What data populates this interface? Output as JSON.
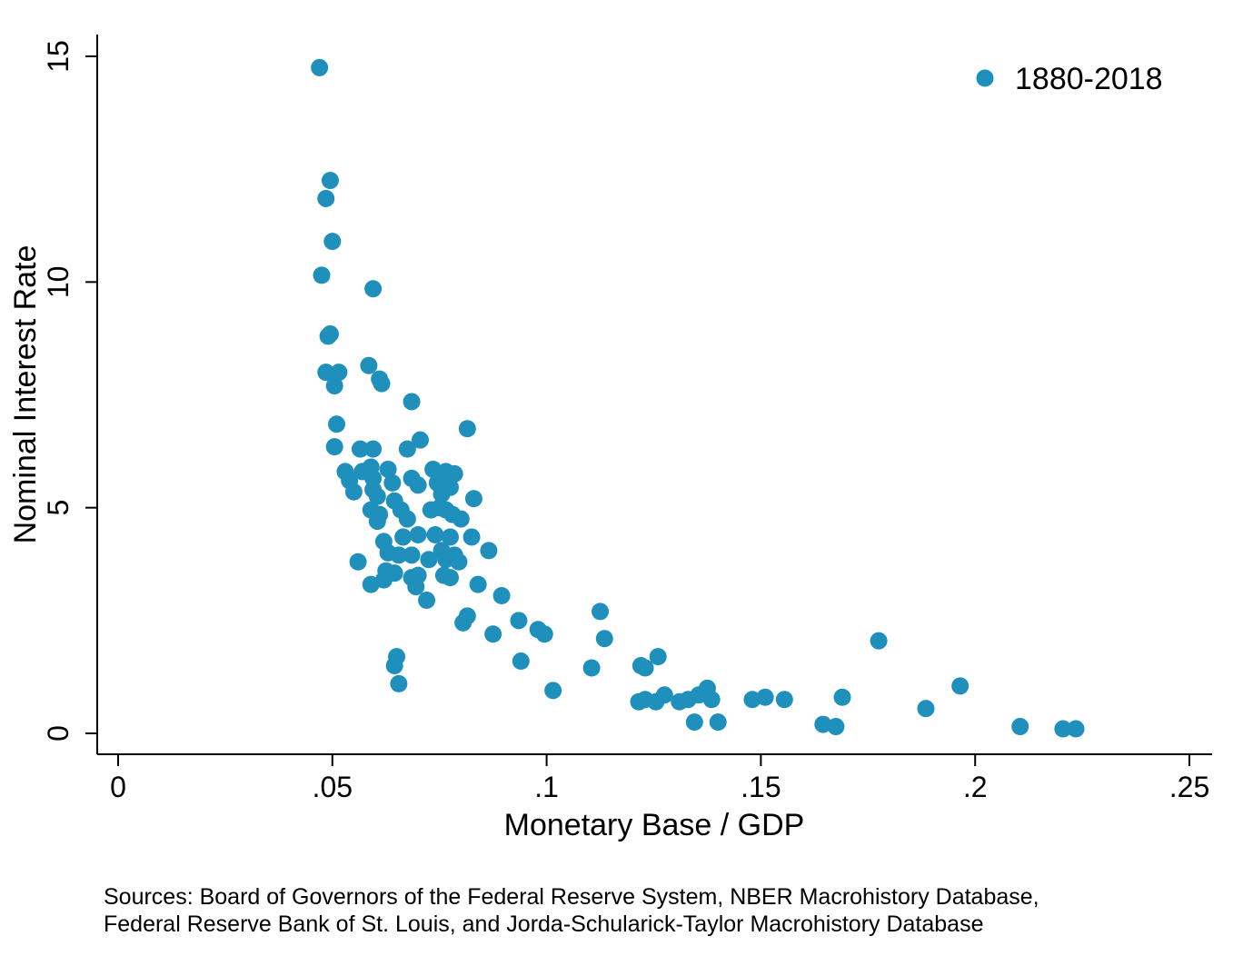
{
  "chart_data": {
    "type": "scatter",
    "title": "",
    "xlabel": "Monetary Base / GDP",
    "ylabel": "Nominal Interest Rate",
    "xlim": [
      0,
      0.25
    ],
    "ylim": [
      0,
      15
    ],
    "xticks": [
      {
        "value": 0,
        "label": "0"
      },
      {
        "value": 0.05,
        "label": ".05"
      },
      {
        "value": 0.1,
        "label": ".1"
      },
      {
        "value": 0.15,
        "label": ".15"
      },
      {
        "value": 0.2,
        "label": ".2"
      },
      {
        "value": 0.25,
        "label": ".25"
      }
    ],
    "yticks": [
      {
        "value": 0,
        "label": "0"
      },
      {
        "value": 5,
        "label": "5"
      },
      {
        "value": 10,
        "label": "10"
      },
      {
        "value": 15,
        "label": "15"
      }
    ],
    "grid": false,
    "legend": {
      "position": "top-right"
    },
    "series": [
      {
        "name": "1880-2018",
        "color": "#1f8fbc",
        "points": [
          [
            0.047,
            14.75
          ],
          [
            0.0495,
            12.25
          ],
          [
            0.0485,
            11.85
          ],
          [
            0.05,
            10.9
          ],
          [
            0.0475,
            10.15
          ],
          [
            0.0595,
            9.85
          ],
          [
            0.0495,
            8.85
          ],
          [
            0.049,
            8.8
          ],
          [
            0.0485,
            8.0
          ],
          [
            0.0515,
            8.0
          ],
          [
            0.0505,
            7.7
          ],
          [
            0.0585,
            8.15
          ],
          [
            0.061,
            7.85
          ],
          [
            0.0615,
            7.75
          ],
          [
            0.0685,
            7.35
          ],
          [
            0.051,
            6.85
          ],
          [
            0.0505,
            6.35
          ],
          [
            0.0705,
            6.5
          ],
          [
            0.0815,
            6.75
          ],
          [
            0.0565,
            6.3
          ],
          [
            0.0595,
            6.3
          ],
          [
            0.0675,
            6.3
          ],
          [
            0.053,
            5.8
          ],
          [
            0.054,
            5.6
          ],
          [
            0.055,
            5.35
          ],
          [
            0.057,
            5.8
          ],
          [
            0.059,
            5.9
          ],
          [
            0.0595,
            5.65
          ],
          [
            0.063,
            5.85
          ],
          [
            0.064,
            5.55
          ],
          [
            0.0595,
            5.4
          ],
          [
            0.0605,
            5.25
          ],
          [
            0.059,
            4.95
          ],
          [
            0.061,
            4.85
          ],
          [
            0.0605,
            4.7
          ],
          [
            0.0645,
            5.15
          ],
          [
            0.066,
            4.95
          ],
          [
            0.0675,
            4.75
          ],
          [
            0.062,
            4.25
          ],
          [
            0.063,
            4.0
          ],
          [
            0.0665,
            4.35
          ],
          [
            0.0655,
            3.95
          ],
          [
            0.0685,
            3.95
          ],
          [
            0.07,
            4.4
          ],
          [
            0.0685,
            5.65
          ],
          [
            0.07,
            5.5
          ],
          [
            0.073,
            4.95
          ],
          [
            0.0735,
            5.85
          ],
          [
            0.0745,
            5.55
          ],
          [
            0.0755,
            5.3
          ],
          [
            0.0765,
            5.8
          ],
          [
            0.0775,
            5.45
          ],
          [
            0.0785,
            5.75
          ],
          [
            0.075,
            5.0
          ],
          [
            0.0765,
            4.95
          ],
          [
            0.078,
            4.85
          ],
          [
            0.08,
            4.75
          ],
          [
            0.083,
            5.2
          ],
          [
            0.074,
            4.4
          ],
          [
            0.0755,
            4.05
          ],
          [
            0.0765,
            3.85
          ],
          [
            0.0775,
            4.35
          ],
          [
            0.0785,
            3.95
          ],
          [
            0.0795,
            3.8
          ],
          [
            0.076,
            3.5
          ],
          [
            0.0775,
            3.45
          ],
          [
            0.0725,
            3.85
          ],
          [
            0.0825,
            4.35
          ],
          [
            0.0865,
            4.05
          ],
          [
            0.056,
            3.8
          ],
          [
            0.059,
            3.3
          ],
          [
            0.062,
            3.4
          ],
          [
            0.0625,
            3.6
          ],
          [
            0.0645,
            3.55
          ],
          [
            0.0685,
            3.45
          ],
          [
            0.07,
            3.5
          ],
          [
            0.0695,
            3.25
          ],
          [
            0.072,
            2.95
          ],
          [
            0.084,
            3.3
          ],
          [
            0.0815,
            2.6
          ],
          [
            0.0805,
            2.45
          ],
          [
            0.0895,
            3.05
          ],
          [
            0.0935,
            2.5
          ],
          [
            0.098,
            2.3
          ],
          [
            0.0995,
            2.2
          ],
          [
            0.0875,
            2.2
          ],
          [
            0.0645,
            1.5
          ],
          [
            0.065,
            1.7
          ],
          [
            0.0655,
            1.1
          ],
          [
            0.094,
            1.6
          ],
          [
            0.1015,
            0.95
          ],
          [
            0.1125,
            2.7
          ],
          [
            0.1135,
            2.1
          ],
          [
            0.1105,
            1.45
          ],
          [
            0.122,
            1.5
          ],
          [
            0.123,
            1.45
          ],
          [
            0.126,
            1.7
          ],
          [
            0.1215,
            0.7
          ],
          [
            0.123,
            0.75
          ],
          [
            0.1255,
            0.7
          ],
          [
            0.1275,
            0.85
          ],
          [
            0.131,
            0.7
          ],
          [
            0.133,
            0.75
          ],
          [
            0.1355,
            0.85
          ],
          [
            0.1375,
            1.0
          ],
          [
            0.1385,
            0.75
          ],
          [
            0.1345,
            0.25
          ],
          [
            0.14,
            0.25
          ],
          [
            0.148,
            0.75
          ],
          [
            0.151,
            0.8
          ],
          [
            0.1555,
            0.75
          ],
          [
            0.1645,
            0.2
          ],
          [
            0.1675,
            0.15
          ],
          [
            0.169,
            0.8
          ],
          [
            0.1775,
            2.05
          ],
          [
            0.1885,
            0.55
          ],
          [
            0.1965,
            1.05
          ],
          [
            0.2105,
            0.15
          ],
          [
            0.2205,
            0.1
          ],
          [
            0.2235,
            0.1
          ]
        ]
      }
    ],
    "note": [
      "Sources: Board of Governors of the Federal Reserve System, NBER Macrohistory Database,",
      "Federal Reserve Bank of St. Louis, and Jorda-Schularick-Taylor Macrohistory Database"
    ]
  }
}
